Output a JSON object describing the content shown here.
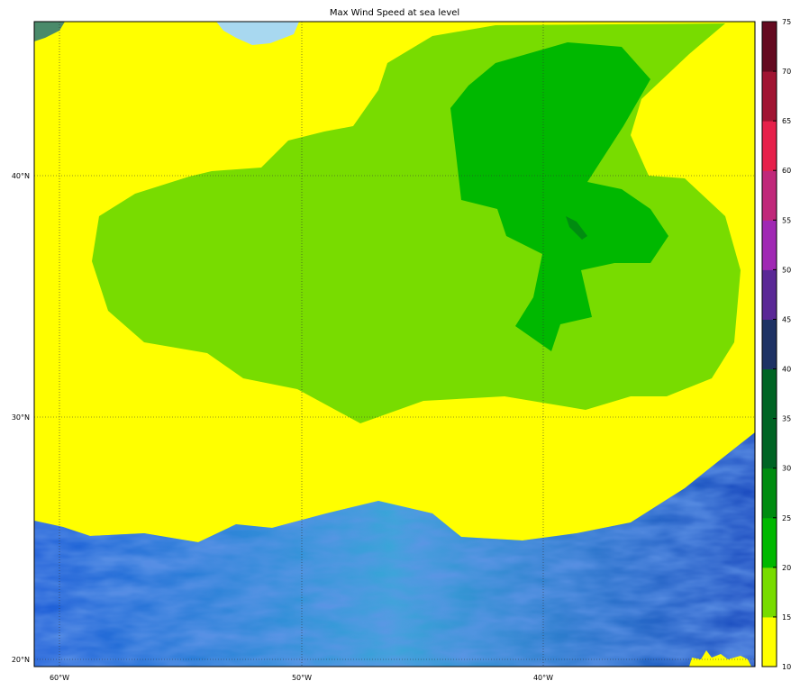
{
  "title": "Max Wind Speed at sea level",
  "map": {
    "longitude_labels": [
      "60°W",
      "50°W",
      "40°W"
    ],
    "longitudes": [
      -60,
      -50,
      -40
    ],
    "latitude_labels": [
      "40°N",
      "30°N",
      "20°N"
    ],
    "latitudes": [
      40,
      30,
      20
    ],
    "colors": {
      "ocean_texture_dark": "#1c4fc8",
      "ocean_texture_light": "#3aa6d8",
      "light_water": "#a8d8f0"
    }
  },
  "colorbar": {
    "tick_labels": [
      "10",
      "15",
      "20",
      "25",
      "30",
      "35",
      "40",
      "45",
      "50",
      "55",
      "60",
      "65",
      "70",
      "75"
    ],
    "levels": [
      10,
      15,
      20,
      25,
      30,
      35,
      40,
      45,
      50,
      55,
      60,
      65,
      70,
      75
    ],
    "colors": [
      "#ffff00",
      "#78dc00",
      "#00b800",
      "#008c10",
      "#006424",
      "#006424",
      "#1e3264",
      "#5a2896",
      "#a028b4",
      "#c0287a",
      "#e6204a",
      "#a01432",
      "#640a20"
    ]
  }
}
